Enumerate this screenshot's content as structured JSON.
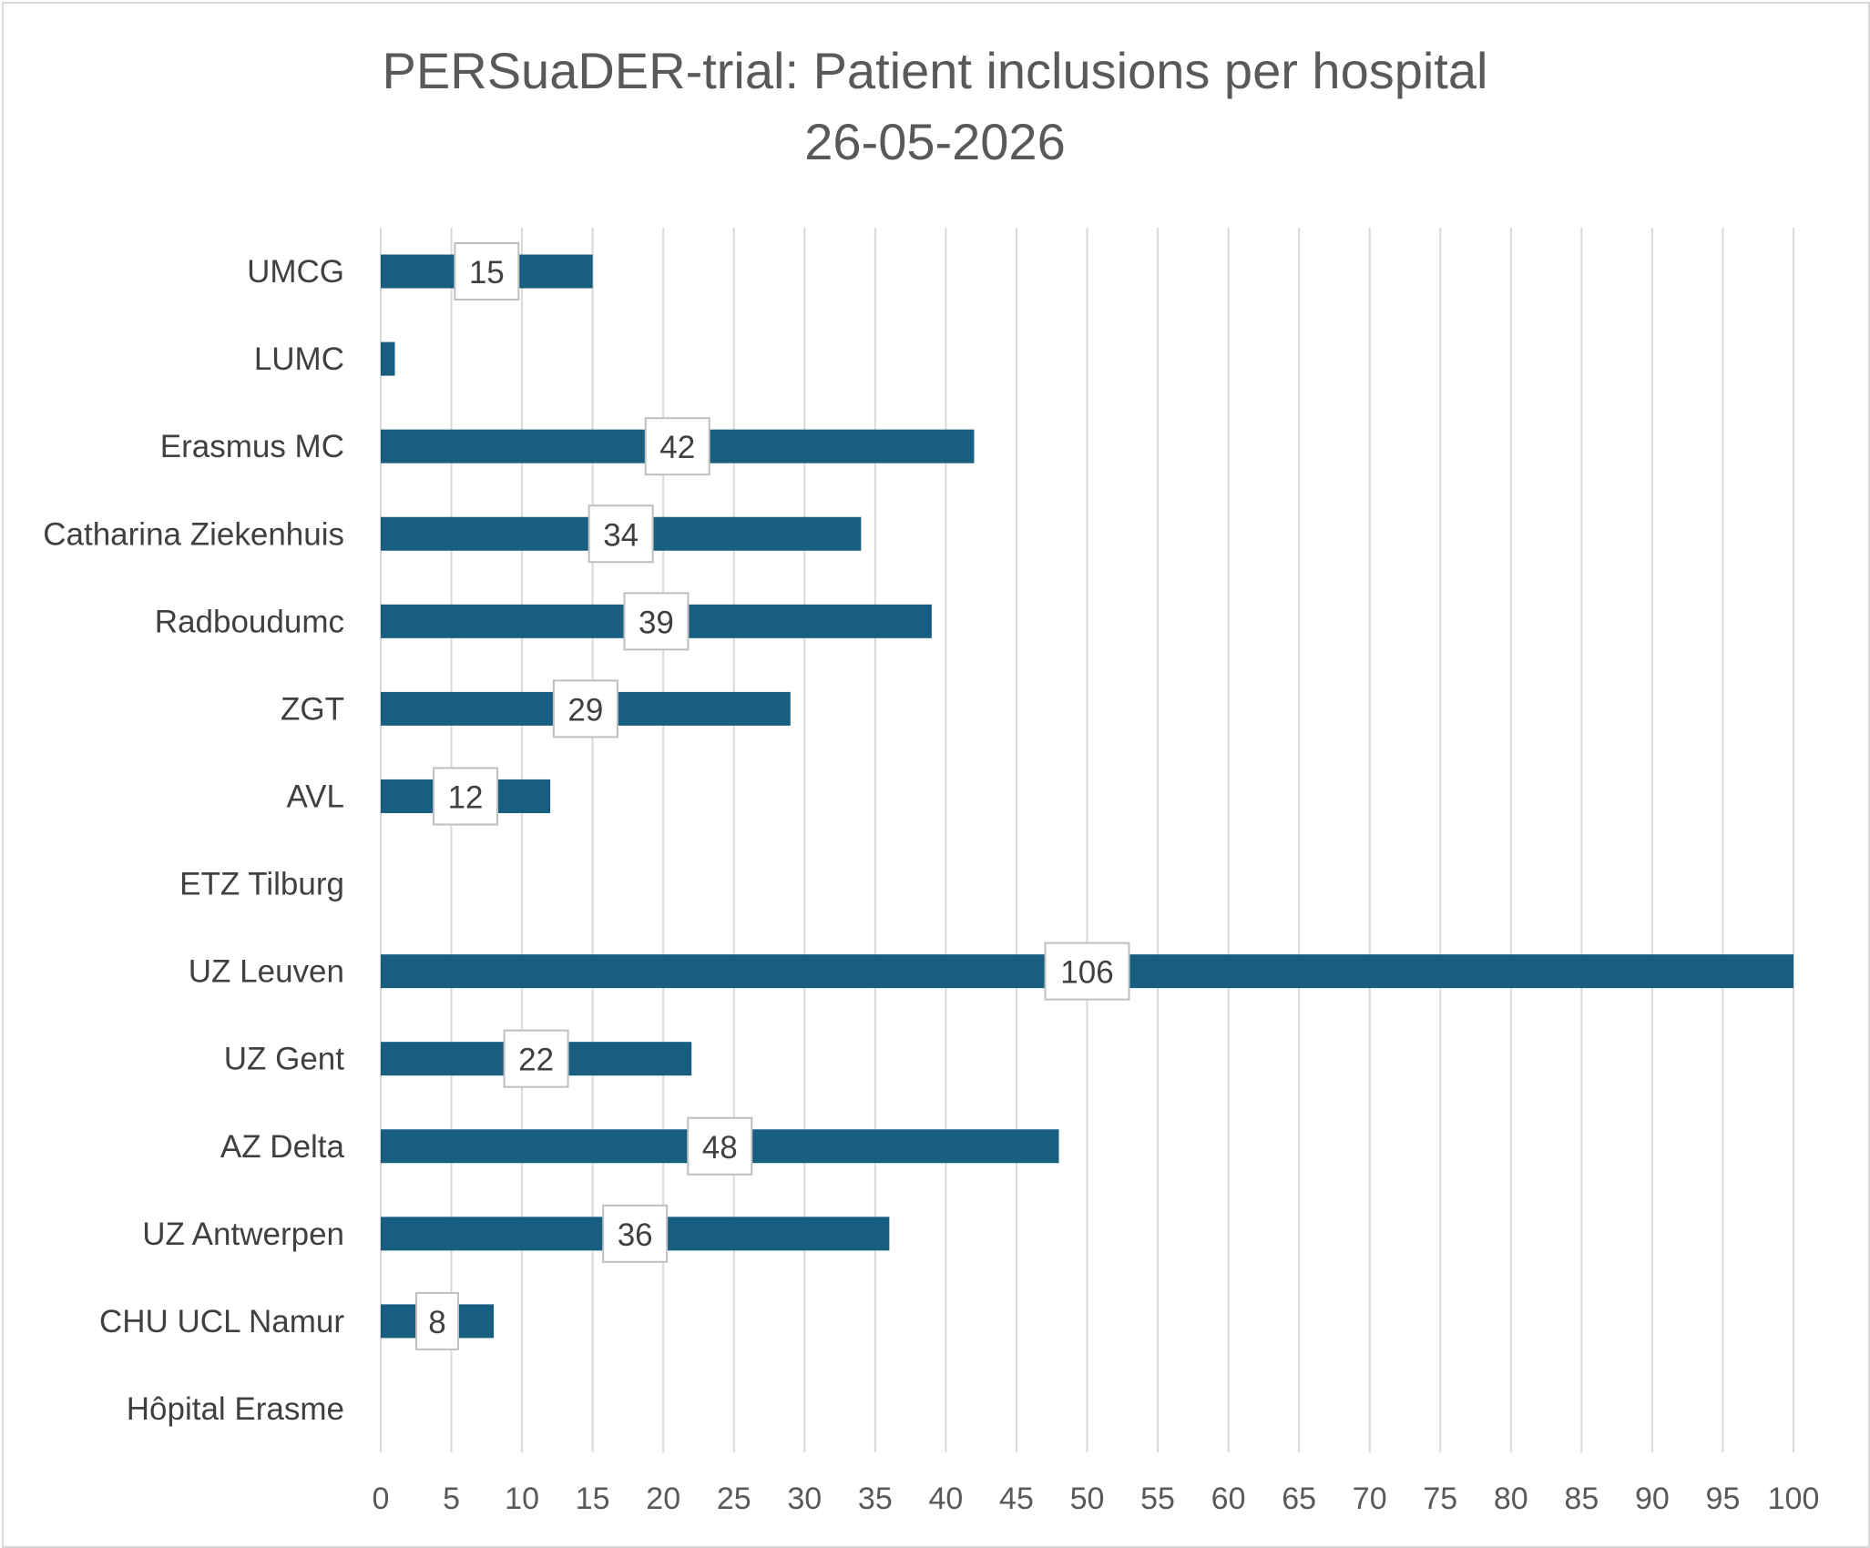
{
  "chart_data": {
    "type": "bar",
    "orientation": "horizontal",
    "title": "PERSuaDER-trial: Patient inclusions per hospital",
    "subtitle": "26-05-2026",
    "categories": [
      "UMCG",
      "LUMC",
      "Erasmus MC",
      "Catharina Ziekenhuis",
      "Radboudumc",
      "ZGT",
      "AVL",
      "ETZ Tilburg",
      "UZ Leuven",
      "UZ Gent",
      "AZ Delta",
      "UZ Antwerpen",
      "CHU UCL Namur",
      "Hôpital Erasme"
    ],
    "values": [
      15,
      1,
      42,
      34,
      39,
      29,
      12,
      0,
      106,
      22,
      48,
      36,
      8,
      0
    ],
    "data_labels": [
      "15",
      "",
      "42",
      "34",
      "39",
      "29",
      "12",
      "",
      "106",
      "22",
      "48",
      "36",
      "8",
      ""
    ],
    "xlim": [
      0,
      100
    ],
    "xticks": [
      "0",
      "5",
      "10",
      "15",
      "20",
      "25",
      "30",
      "35",
      "40",
      "45",
      "50",
      "55",
      "60",
      "65",
      "70",
      "75",
      "80",
      "85",
      "90",
      "95",
      "100"
    ],
    "xlabel": "",
    "ylabel": "",
    "grid": "vertical",
    "legend": "none",
    "bar_color": "#175e80",
    "grid_color": "#d9d9d9"
  }
}
